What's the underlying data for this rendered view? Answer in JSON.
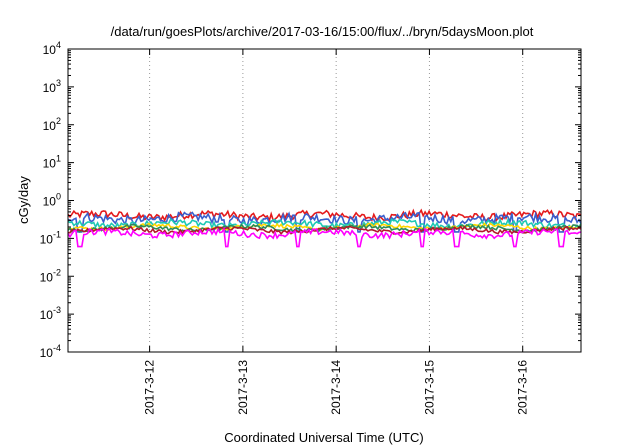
{
  "chart_data": {
    "type": "line",
    "title": "/data/run/goesPlots/archive/2017-03-16/15:00/flux/../bryn/5daysMoon.plot",
    "xlabel": "Coordinated Universal Time (UTC)",
    "ylabel": "cGy/day",
    "yscale": "log",
    "ylim": [
      0.0001,
      10000
    ],
    "y_ticks": [
      {
        "base": "10",
        "exp": "-4",
        "value": 0.0001
      },
      {
        "base": "10",
        "exp": "-3",
        "value": 0.001
      },
      {
        "base": "10",
        "exp": "-2",
        "value": 0.01
      },
      {
        "base": "10",
        "exp": "-1",
        "value": 0.1
      },
      {
        "base": "10",
        "exp": "0",
        "value": 1
      },
      {
        "base": "10",
        "exp": "1",
        "value": 10
      },
      {
        "base": "10",
        "exp": "2",
        "value": 100
      },
      {
        "base": "10",
        "exp": "3",
        "value": 1000
      },
      {
        "base": "10",
        "exp": "4",
        "value": 10000
      }
    ],
    "xlim": [
      "2017-03-11 03:00",
      "2017-03-16 15:00"
    ],
    "x_ticks": [
      {
        "label": "2017-3-12",
        "value": "2017-03-12 00:00"
      },
      {
        "label": "2017-3-13",
        "value": "2017-03-13 00:00"
      },
      {
        "label": "2017-3-14",
        "value": "2017-03-14 00:00"
      },
      {
        "label": "2017-3-15",
        "value": "2017-03-15 00:00"
      },
      {
        "label": "2017-3-16",
        "value": "2017-03-16 00:00"
      }
    ],
    "grid": {
      "x": true,
      "y": false
    },
    "series": [
      {
        "color": "#e41a1c",
        "base": 0.4,
        "noise": 0.1,
        "spikes": 0
      },
      {
        "color": "#3a5fcd",
        "base": 0.33,
        "noise": 0.12,
        "spikes": 1
      },
      {
        "color": "#1ec8b4",
        "base": 0.24,
        "noise": 0.08,
        "spikes": 0
      },
      {
        "color": "#ffd700",
        "base": 0.2,
        "noise": 0.05,
        "spikes": 0
      },
      {
        "color": "#2e8b57",
        "base": 0.185,
        "noise": 0.05,
        "spikes": 0
      },
      {
        "color": "#b2182b",
        "base": 0.165,
        "noise": 0.05,
        "spikes": 0
      },
      {
        "color": "#ff00ff",
        "base": 0.135,
        "noise": 0.08,
        "spikes": 1
      }
    ],
    "spike_times": [
      "2017-03-11 06:00",
      "2017-03-12 20:00",
      "2017-03-13 14:00",
      "2017-03-14 06:00",
      "2017-03-14 22:00",
      "2017-03-15 07:00",
      "2017-03-15 22:00",
      "2017-03-16 10:00"
    ]
  }
}
